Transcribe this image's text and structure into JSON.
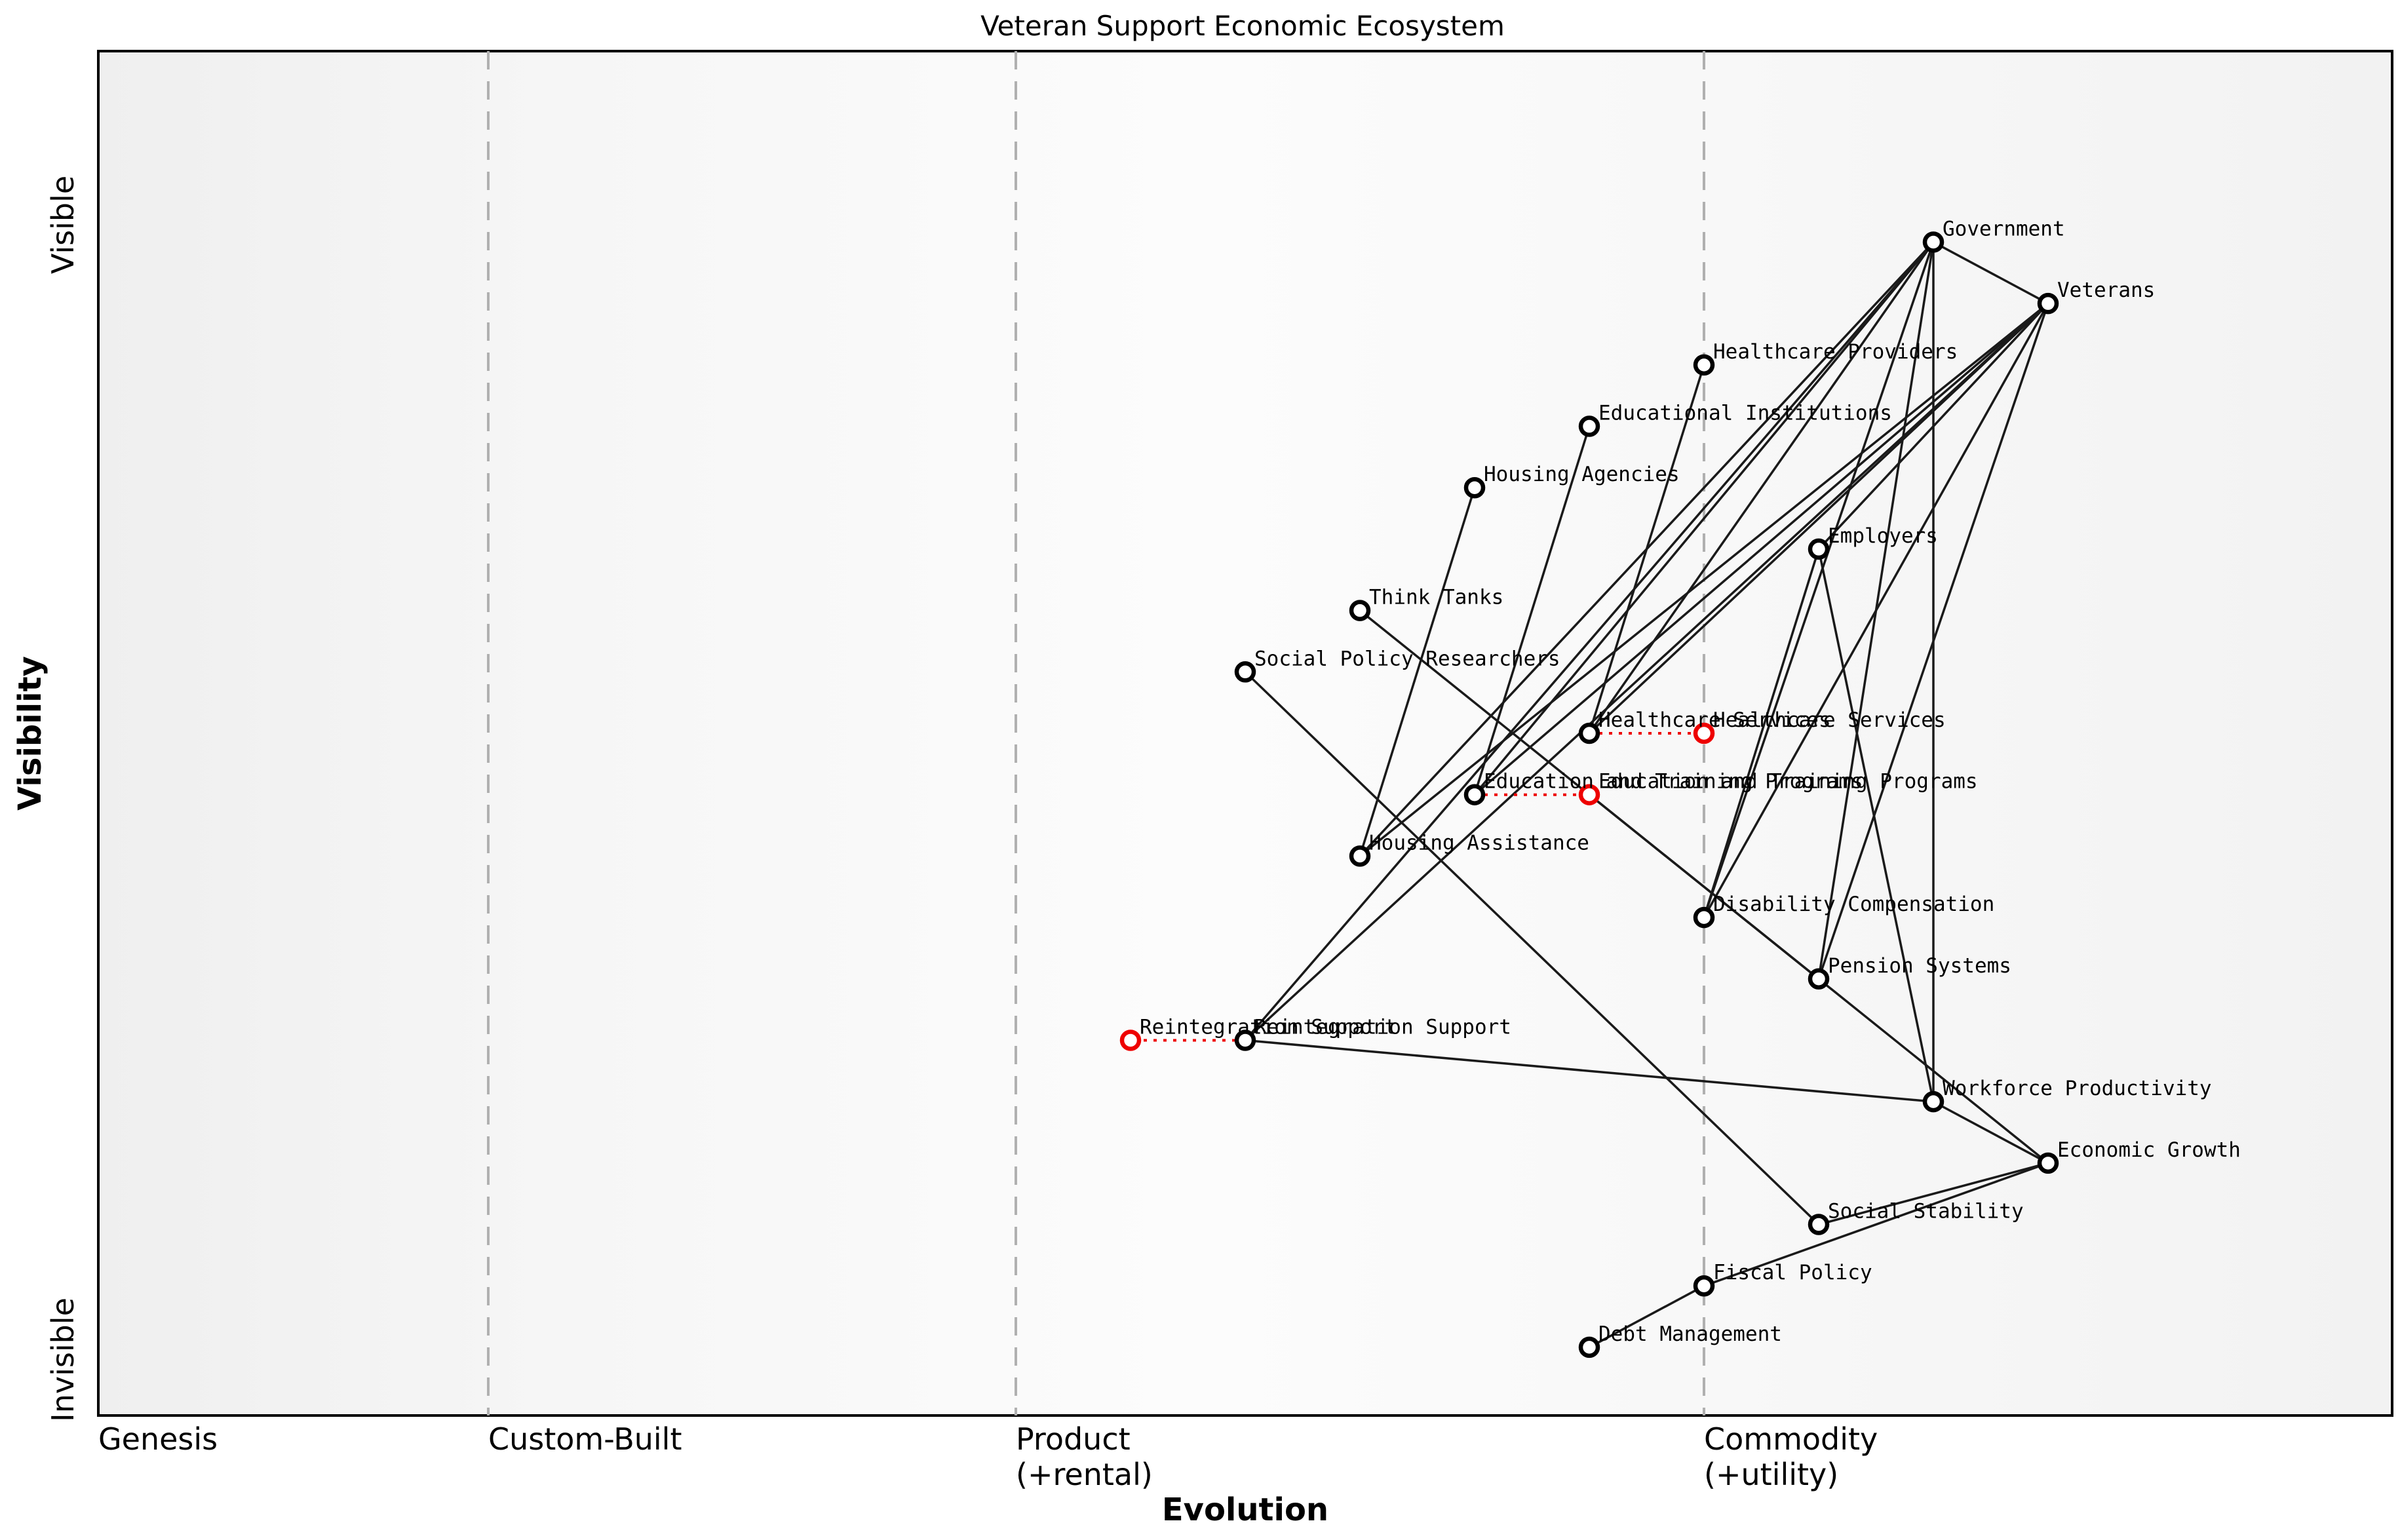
{
  "chart_data": {
    "type": "wardley-map",
    "title": "Veteran Support Economic Ecosystem",
    "xlabel": "Evolution",
    "ylabel": "Visibility",
    "visibility_axis": {
      "top": "Visible",
      "bottom": "Invisible"
    },
    "axis_ranges": {
      "evolution": [
        0,
        1
      ],
      "visibility": [
        0,
        1
      ]
    },
    "grid": "stage-boundaries-dashed",
    "stages": [
      {
        "label_lines": [
          "Genesis"
        ],
        "boundary": 0.0
      },
      {
        "label_lines": [
          "Custom-Built"
        ],
        "boundary": 0.17
      },
      {
        "label_lines": [
          "Product",
          "(+rental)"
        ],
        "boundary": 0.4
      },
      {
        "label_lines": [
          "Commodity",
          "(+utility)"
        ],
        "boundary": 0.7
      }
    ],
    "nodes": [
      {
        "name": "Government",
        "evolution": 0.8,
        "visibility": 0.86
      },
      {
        "name": "Veterans",
        "evolution": 0.85,
        "visibility": 0.815
      },
      {
        "name": "Healthcare Providers",
        "evolution": 0.7,
        "visibility": 0.77
      },
      {
        "name": "Educational Institutions",
        "evolution": 0.65,
        "visibility": 0.725
      },
      {
        "name": "Housing Agencies",
        "evolution": 0.6,
        "visibility": 0.68
      },
      {
        "name": "Employers",
        "evolution": 0.75,
        "visibility": 0.635
      },
      {
        "name": "Think Tanks",
        "evolution": 0.55,
        "visibility": 0.59
      },
      {
        "name": "Social Policy Researchers",
        "evolution": 0.5,
        "visibility": 0.545
      },
      {
        "name": "Healthcare Services",
        "evolution": 0.65,
        "visibility": 0.5,
        "evolved_evolution": 0.7
      },
      {
        "name": "Education and Training Programs",
        "evolution": 0.6,
        "visibility": 0.455,
        "evolved_evolution": 0.65
      },
      {
        "name": "Housing Assistance",
        "evolution": 0.55,
        "visibility": 0.41
      },
      {
        "name": "Disability Compensation",
        "evolution": 0.7,
        "visibility": 0.365
      },
      {
        "name": "Pension Systems",
        "evolution": 0.75,
        "visibility": 0.32
      },
      {
        "name": "Reintegration Support",
        "evolution": 0.5,
        "visibility": 0.275,
        "evolved_evolution": 0.45
      },
      {
        "name": "Workforce Productivity",
        "evolution": 0.8,
        "visibility": 0.23
      },
      {
        "name": "Economic Growth",
        "evolution": 0.85,
        "visibility": 0.185
      },
      {
        "name": "Social Stability",
        "evolution": 0.75,
        "visibility": 0.14
      },
      {
        "name": "Fiscal Policy",
        "evolution": 0.7,
        "visibility": 0.095
      },
      {
        "name": "Debt Management",
        "evolution": 0.65,
        "visibility": 0.05
      }
    ],
    "edges": [
      {
        "from": "Government",
        "to": "Veterans"
      },
      {
        "from": "Government",
        "to": "Healthcare Services"
      },
      {
        "from": "Government",
        "to": "Education and Training Programs"
      },
      {
        "from": "Government",
        "to": "Housing Assistance"
      },
      {
        "from": "Government",
        "to": "Disability Compensation"
      },
      {
        "from": "Government",
        "to": "Pension Systems"
      },
      {
        "from": "Government",
        "to": "Reintegration Support"
      },
      {
        "from": "Government",
        "to": "Workforce Productivity"
      },
      {
        "from": "Veterans",
        "to": "Healthcare Services"
      },
      {
        "from": "Veterans",
        "to": "Education and Training Programs"
      },
      {
        "from": "Veterans",
        "to": "Housing Assistance"
      },
      {
        "from": "Veterans",
        "to": "Disability Compensation"
      },
      {
        "from": "Veterans",
        "to": "Pension Systems"
      },
      {
        "from": "Veterans",
        "to": "Reintegration Support"
      },
      {
        "from": "Veterans",
        "to": "Employers"
      },
      {
        "from": "Healthcare Providers",
        "to": "Healthcare Services"
      },
      {
        "from": "Educational Institutions",
        "to": "Education and Training Programs"
      },
      {
        "from": "Housing Agencies",
        "to": "Housing Assistance"
      },
      {
        "from": "Employers",
        "to": "Workforce Productivity"
      },
      {
        "from": "Employers",
        "to": "Disability Compensation"
      },
      {
        "from": "Think Tanks",
        "to": "Pension Systems"
      },
      {
        "from": "Social Policy Researchers",
        "to": "Social Stability"
      },
      {
        "from": "Reintegration Support",
        "to": "Workforce Productivity"
      },
      {
        "from": "Workforce Productivity",
        "to": "Economic Growth"
      },
      {
        "from": "Education and Training Programs",
        "to": "Economic Growth",
        "from_evolved": true
      },
      {
        "from": "Social Stability",
        "to": "Economic Growth"
      },
      {
        "from": "Fiscal Policy",
        "to": "Economic Growth"
      },
      {
        "from": "Fiscal Policy",
        "to": "Debt Management"
      }
    ],
    "colors": {
      "node_stroke": "#000000",
      "node_fill": "#ffffff",
      "evolved_node_stroke": "#ee0000",
      "evolve_link": "#ee0000",
      "edge": "#1a1a1a",
      "stage_gridline": "#b0b0b0",
      "plot_border": "#000000",
      "plot_bg_left": "#efefef",
      "plot_bg_mid": "#fcfcfc",
      "plot_bg_right": "#f2f2f2"
    },
    "legend": "none"
  }
}
